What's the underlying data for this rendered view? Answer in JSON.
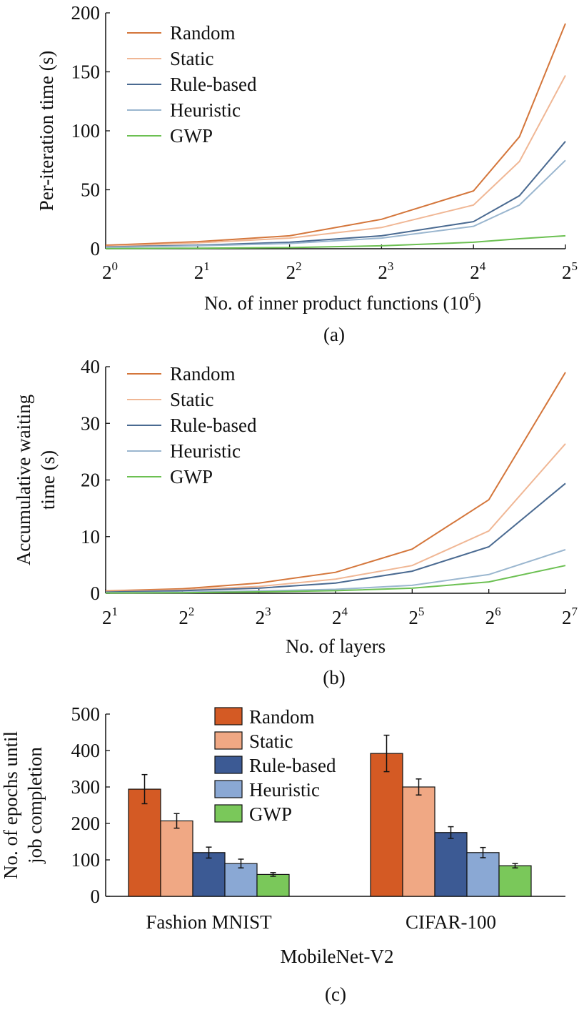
{
  "series_names": [
    "Random",
    "Static",
    "Rule-based",
    "Heuristic",
    "GWP"
  ],
  "line_colors": [
    "#d4763b",
    "#f0b795",
    "#4a6a91",
    "#9ab6cf",
    "#6cc052"
  ],
  "bar_colors": [
    "#d45a24",
    "#f0a884",
    "#3c5a94",
    "#8aa8d4",
    "#7ac85a"
  ],
  "chart_data": [
    {
      "type": "line",
      "caption": "(a)",
      "xlabel": "No. of inner product functions (10",
      "xlabel_sup": "6",
      "xlabel_end": ")",
      "ylabel": "Per-iteration time (s)",
      "x_ticks": [
        {
          "base": "2",
          "exp": "0"
        },
        {
          "base": "2",
          "exp": "1"
        },
        {
          "base": "2",
          "exp": "2"
        },
        {
          "base": "2",
          "exp": "3"
        },
        {
          "base": "2",
          "exp": "4"
        },
        {
          "base": "2",
          "exp": "5"
        }
      ],
      "y_ticks": [
        "0",
        "50",
        "100",
        "150",
        "200"
      ],
      "ylim": [
        0,
        200
      ],
      "x_exponents": [
        0,
        1,
        2,
        3,
        4,
        4.5,
        5
      ],
      "series": [
        {
          "name": "Random",
          "values": [
            3,
            6,
            11,
            25,
            49,
            95,
            191
          ]
        },
        {
          "name": "Static",
          "values": [
            2,
            5,
            9,
            18,
            37,
            74,
            147
          ]
        },
        {
          "name": "Rule-based",
          "values": [
            1.5,
            3,
            5.5,
            11,
            23,
            45,
            91
          ]
        },
        {
          "name": "Heuristic",
          "values": [
            1.2,
            2.5,
            4.5,
            9,
            19,
            37,
            75
          ]
        },
        {
          "name": "GWP",
          "values": [
            0.2,
            0.5,
            1,
            2.5,
            5.5,
            8.5,
            11
          ]
        }
      ]
    },
    {
      "type": "line",
      "caption": "(b)",
      "xlabel": "No. of layers",
      "ylabel": "Accumulative waiting time (s)",
      "ylabel_lines": [
        "Accumulative waiting",
        "time (s)"
      ],
      "x_ticks": [
        {
          "base": "2",
          "exp": "1"
        },
        {
          "base": "2",
          "exp": "2"
        },
        {
          "base": "2",
          "exp": "3"
        },
        {
          "base": "2",
          "exp": "4"
        },
        {
          "base": "2",
          "exp": "5"
        },
        {
          "base": "2",
          "exp": "6"
        },
        {
          "base": "2",
          "exp": "7"
        }
      ],
      "y_ticks": [
        "0",
        "10",
        "20",
        "30",
        "40"
      ],
      "ylim": [
        0,
        40
      ],
      "x_exponents": [
        1,
        2,
        3,
        4,
        5,
        6,
        7
      ],
      "series": [
        {
          "name": "Random",
          "values": [
            0.4,
            0.8,
            1.8,
            3.7,
            7.8,
            16.5,
            39
          ]
        },
        {
          "name": "Static",
          "values": [
            0.3,
            0.6,
            1.2,
            2.5,
            4.9,
            11,
            26.4
          ]
        },
        {
          "name": "Rule-based",
          "values": [
            0.2,
            0.45,
            0.9,
            1.8,
            3.9,
            8.2,
            19.4
          ]
        },
        {
          "name": "Heuristic",
          "values": [
            0.1,
            0.2,
            0.4,
            0.7,
            1.4,
            3.3,
            7.7
          ]
        },
        {
          "name": "GWP",
          "values": [
            0.05,
            0.1,
            0.25,
            0.45,
            0.9,
            2,
            4.9
          ]
        }
      ]
    },
    {
      "type": "bar",
      "caption": "(c)",
      "xlabel": "MobileNet-V2",
      "ylabel": "No. of epochs until job completion",
      "ylabel_lines": [
        "No. of epochs until",
        "job completion"
      ],
      "categories": [
        "Fashion MNIST",
        "CIFAR-100"
      ],
      "y_ticks": [
        "0",
        "100",
        "200",
        "300",
        "400",
        "500"
      ],
      "ylim": [
        0,
        500
      ],
      "series": [
        {
          "name": "Random",
          "values": [
            294,
            392
          ],
          "errors": [
            40,
            50
          ]
        },
        {
          "name": "Static",
          "values": [
            207,
            300
          ],
          "errors": [
            20,
            22
          ]
        },
        {
          "name": "Rule-based",
          "values": [
            120,
            175
          ],
          "errors": [
            15,
            16
          ]
        },
        {
          "name": "Heuristic",
          "values": [
            90,
            120
          ],
          "errors": [
            12,
            14
          ]
        },
        {
          "name": "GWP",
          "values": [
            60,
            84
          ],
          "errors": [
            5,
            6
          ]
        }
      ]
    }
  ]
}
